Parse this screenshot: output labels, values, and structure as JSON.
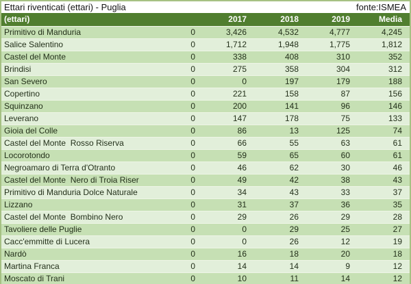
{
  "header_bar": {
    "title": "Ettari riventicati (ettari) - Puglia",
    "source": "fonte:ISMEA"
  },
  "colors": {
    "header_bg": "#507e2f",
    "row_odd": "#c6e0b4",
    "row_even": "#e2efda",
    "header_text": "#ffffff",
    "text_dark": "#23301a",
    "frame": "#a6c183"
  },
  "chart_data": {
    "type": "table",
    "title": "Ettari riventicati (ettari) - Puglia",
    "source": "fonte:ISMEA",
    "columns": [
      "(ettari)",
      "",
      "2017",
      "2018",
      "2019",
      "Media"
    ],
    "rows": [
      [
        "Primitivo di Manduria",
        0,
        3426,
        4532,
        4777,
        4245
      ],
      [
        "Salice Salentino",
        0,
        1712,
        1948,
        1775,
        1812
      ],
      [
        "Castel del Monte",
        0,
        338,
        408,
        310,
        352
      ],
      [
        "Brindisi",
        0,
        275,
        358,
        304,
        312
      ],
      [
        "San Severo",
        0,
        0,
        197,
        179,
        188
      ],
      [
        "Copertino",
        0,
        221,
        158,
        87,
        156
      ],
      [
        "Squinzano",
        0,
        200,
        141,
        96,
        146
      ],
      [
        "Leverano",
        0,
        147,
        178,
        75,
        133
      ],
      [
        "Gioia del Colle",
        0,
        86,
        13,
        125,
        74
      ],
      [
        "Castel del Monte  Rosso Riserva",
        0,
        66,
        55,
        63,
        61
      ],
      [
        "Locorotondo",
        0,
        59,
        65,
        60,
        61
      ],
      [
        "Negroamaro di Terra d'Otranto",
        0,
        46,
        62,
        30,
        46
      ],
      [
        "Castel del Monte  Nero di Troia Riser",
        0,
        49,
        42,
        38,
        43
      ],
      [
        "Primitivo di Manduria Dolce Naturale",
        0,
        34,
        43,
        33,
        37
      ],
      [
        "Lizzano",
        0,
        31,
        37,
        36,
        35
      ],
      [
        "Castel del Monte  Bombino Nero",
        0,
        29,
        26,
        29,
        28
      ],
      [
        "Tavoliere delle Puglie",
        0,
        0,
        29,
        25,
        27
      ],
      [
        "Cacc'emmitte di Lucera",
        0,
        0,
        26,
        12,
        19
      ],
      [
        "Nardò",
        0,
        16,
        18,
        20,
        18
      ],
      [
        "Martina Franca",
        0,
        14,
        14,
        9,
        12
      ],
      [
        "Moscato di Trani",
        0,
        10,
        11,
        14,
        12
      ]
    ]
  }
}
